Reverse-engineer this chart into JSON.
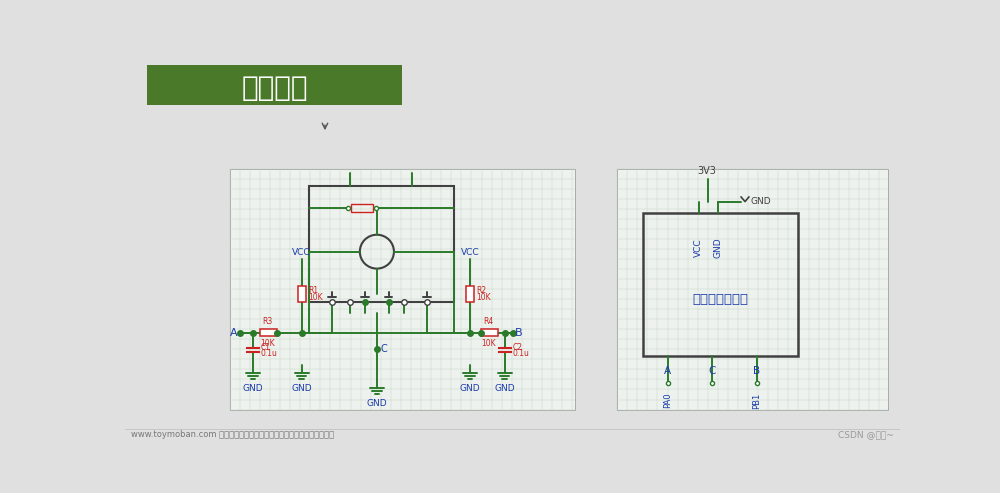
{
  "bg_color": "#e0e0e0",
  "title_text": "硬件电路",
  "title_bg": "#4a7a29",
  "title_fg": "#ffffff",
  "footer_left": "www.toymoban.com 网络图片仅供展示，非存储，如有侵权请联系删除。",
  "footer_right": "CSDN @乖凉~",
  "panel_bg": "#eef2ee",
  "panel_grid": "#c0d4c0",
  "panel_border": "#aaaaaa",
  "wire_color": "#2a7a2a",
  "comp_color": "#cc2222",
  "label_color": "#1a3aaa",
  "box_color": "#404040",
  "cursor_color": "#555555"
}
